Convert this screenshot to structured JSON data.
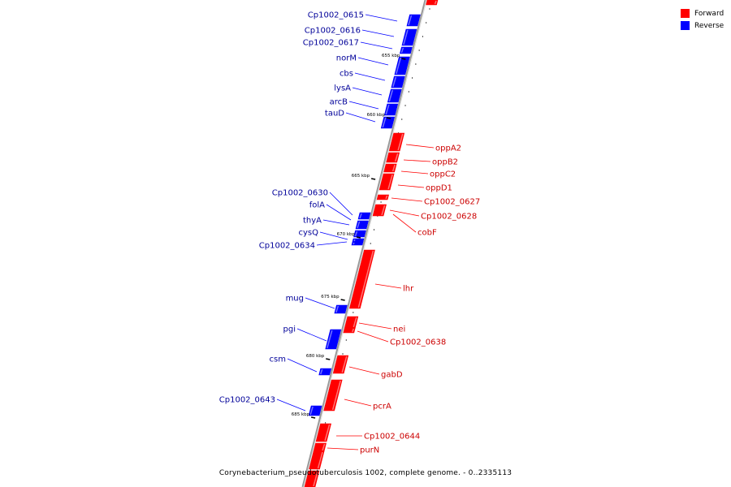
{
  "colors": {
    "forward": "#ff0000",
    "reverse": "#0000ff",
    "forward_label": "#cc0000",
    "reverse_label": "#000099",
    "axis": "#999999"
  },
  "legend": {
    "forward_label": "Forward",
    "reverse_label": "Reverse"
  },
  "caption": "Corynebacterium_pseudotuberculosis 1002, complete genome. - 0..2335113",
  "scale_labels": [
    "655 kbp",
    "660 kbp",
    "665 kbp",
    "670 kbp",
    "675 kbp",
    "680 kbp",
    "685 kbp"
  ],
  "reverse_genes": [
    "Cp1002_0615",
    "Cp1002_0616",
    "Cp1002_0617",
    "norM",
    "cbs",
    "lysA",
    "arcB",
    "tauD",
    "Cp1002_0630",
    "folA",
    "thyA",
    "cysQ",
    "Cp1002_0634",
    "mug",
    "pgi",
    "csm",
    "Cp1002_0643"
  ],
  "forward_genes": [
    "oppA2",
    "oppB2",
    "oppC2",
    "oppD1",
    "Cp1002_0627",
    "Cp1002_0628",
    "cobF",
    "lhr",
    "nei",
    "Cp1002_0638",
    "gabD",
    "pcrA",
    "Cp1002_0644",
    "purN"
  ]
}
